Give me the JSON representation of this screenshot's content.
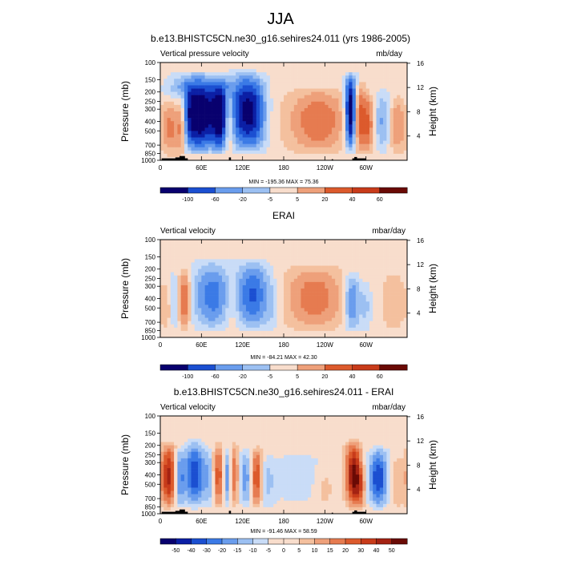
{
  "figure": {
    "title": "JJA"
  },
  "chart_data": [
    {
      "type": "heatmap",
      "title": "b.e13.BHISTC5CN.ne30_g16.sehires24.011 (yrs 1986-2005)",
      "left_label": "Vertical pressure velocity",
      "right_label": "mb/day",
      "ylabel": "Pressure (mb)",
      "ylabel_right": "Height (km)",
      "pressure_ticks": [
        "100",
        "150",
        "200",
        "250",
        "300",
        "400",
        "500",
        "700",
        "850",
        "1000"
      ],
      "height_ticks": [
        "16",
        "12",
        "8",
        "4"
      ],
      "lon_ticks": [
        "0",
        "60E",
        "120E",
        "180",
        "120W",
        "60W"
      ],
      "stats": "MIN = -195.36  MAX = 75.36",
      "colorbar_levels": [
        "-100",
        "-60",
        "-20",
        "-5",
        "5",
        "20",
        "40",
        "60"
      ],
      "has_topography": true,
      "features": [
        {
          "lon": 15,
          "w": 8,
          "top": 200,
          "amp": 40
        },
        {
          "lon": 30,
          "w": 6,
          "top": 180,
          "amp": 50
        },
        {
          "lon": 55,
          "w": 25,
          "top": 120,
          "amp": -70
        },
        {
          "lon": 88,
          "w": 8,
          "top": 130,
          "amp": -40
        },
        {
          "lon": 100,
          "w": 5,
          "top": 180,
          "amp": 30
        },
        {
          "lon": 120,
          "w": 14,
          "top": 110,
          "amp": -45
        },
        {
          "lon": 140,
          "w": 12,
          "top": 120,
          "amp": -35
        },
        {
          "lon": 230,
          "w": 30,
          "top": 170,
          "amp": 30
        },
        {
          "lon": 278,
          "w": 6,
          "top": 120,
          "amp": -80
        },
        {
          "lon": 290,
          "w": 8,
          "top": 150,
          "amp": 35
        },
        {
          "lon": 305,
          "w": 6,
          "top": 200,
          "amp": 25
        },
        {
          "lon": 325,
          "w": 10,
          "top": 180,
          "amp": -25
        },
        {
          "lon": 345,
          "w": 10,
          "top": 200,
          "amp": 25
        }
      ]
    },
    {
      "type": "heatmap",
      "title": "ERAI",
      "left_label": "Vertical velocity",
      "right_label": "mbar/day",
      "ylabel": "Pressure (mb)",
      "ylabel_right": "Height (km)",
      "pressure_ticks": [
        "100",
        "150",
        "200",
        "250",
        "300",
        "400",
        "500",
        "700",
        "850",
        "1000"
      ],
      "height_ticks": [
        "16",
        "12",
        "8",
        "4"
      ],
      "lon_ticks": [
        "0",
        "60E",
        "120E",
        "180",
        "120W",
        "60W"
      ],
      "stats": "MIN = -84.21  MAX = 42.30",
      "colorbar_levels": [
        "-100",
        "-60",
        "-20",
        "-5",
        "5",
        "20",
        "40",
        "60"
      ],
      "has_topography": false,
      "features": [
        {
          "lon": 10,
          "w": 6,
          "top": 250,
          "amp": 12
        },
        {
          "lon": 20,
          "w": 6,
          "top": 200,
          "amp": -15
        },
        {
          "lon": 35,
          "w": 6,
          "top": 180,
          "amp": 35
        },
        {
          "lon": 75,
          "w": 20,
          "top": 150,
          "amp": -35
        },
        {
          "lon": 105,
          "w": 7,
          "top": 180,
          "amp": 15
        },
        {
          "lon": 135,
          "w": 18,
          "top": 150,
          "amp": -40
        },
        {
          "lon": 165,
          "w": 8,
          "top": 250,
          "amp": -8
        },
        {
          "lon": 225,
          "w": 30,
          "top": 170,
          "amp": 28
        },
        {
          "lon": 280,
          "w": 8,
          "top": 200,
          "amp": -35
        },
        {
          "lon": 300,
          "w": 6,
          "top": 250,
          "amp": -15
        },
        {
          "lon": 340,
          "w": 12,
          "top": 200,
          "amp": 12
        }
      ]
    },
    {
      "type": "heatmap",
      "title": "b.e13.BHISTC5CN.ne30_g16.sehires24.011 - ERAI",
      "left_label": "Vertical velocity",
      "right_label": "mbar/day",
      "ylabel": "Pressure (mb)",
      "ylabel_right": "Height (km)",
      "pressure_ticks": [
        "100",
        "150",
        "200",
        "250",
        "300",
        "400",
        "500",
        "700",
        "850",
        "1000"
      ],
      "height_ticks": [
        "16",
        "12",
        "8",
        "4"
      ],
      "lon_ticks": [
        "0",
        "60E",
        "120E",
        "180",
        "120W",
        "60W"
      ],
      "stats": "MIN = -91.46  MAX = 58.59",
      "colorbar_levels": [
        "-50",
        "-40",
        "-30",
        "-20",
        "-15",
        "-10",
        "-5",
        "0",
        "5",
        "10",
        "15",
        "20",
        "30",
        "40",
        "50"
      ],
      "has_topography": true,
      "features": [
        {
          "lon": 12,
          "w": 8,
          "top": 180,
          "amp": 38
        },
        {
          "lon": 28,
          "w": 5,
          "top": 200,
          "amp": -25
        },
        {
          "lon": 50,
          "w": 10,
          "top": 170,
          "amp": -35
        },
        {
          "lon": 72,
          "w": 6,
          "top": 200,
          "amp": -15
        },
        {
          "lon": 85,
          "w": 6,
          "top": 180,
          "amp": 30
        },
        {
          "lon": 97,
          "w": 5,
          "top": 200,
          "amp": -25
        },
        {
          "lon": 108,
          "w": 5,
          "top": 180,
          "amp": 25
        },
        {
          "lon": 125,
          "w": 8,
          "top": 200,
          "amp": -20
        },
        {
          "lon": 140,
          "w": 6,
          "top": 200,
          "amp": 35
        },
        {
          "lon": 155,
          "w": 8,
          "top": 250,
          "amp": -10
        },
        {
          "lon": 200,
          "w": 40,
          "top": 200,
          "amp": -6
        },
        {
          "lon": 240,
          "w": 10,
          "top": 300,
          "amp": 8
        },
        {
          "lon": 282,
          "w": 8,
          "top": 170,
          "amp": 45
        },
        {
          "lon": 292,
          "w": 5,
          "top": 300,
          "amp": 15
        },
        {
          "lon": 318,
          "w": 10,
          "top": 200,
          "amp": -35
        },
        {
          "lon": 345,
          "w": 8,
          "top": 250,
          "amp": 10
        }
      ]
    }
  ],
  "colors": {
    "scale": [
      "#08006e",
      "#0b1fa5",
      "#1b4fd1",
      "#3b7ae6",
      "#6a9ded",
      "#9cc0f2",
      "#c9dcf7",
      "#f8ddcc",
      "#f4c09e",
      "#eea07a",
      "#e67b50",
      "#dc5a2c",
      "#c83b1a",
      "#a42212",
      "#6a0a05"
    ],
    "topography": "#000000"
  }
}
